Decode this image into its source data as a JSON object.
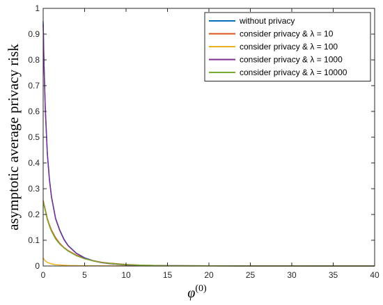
{
  "chart_data": {
    "type": "line",
    "title": "",
    "xlabel": "φ",
    "xlabel_superscript": "(0)",
    "ylabel": "asymptotic average privacy risk",
    "xlim": [
      0,
      40
    ],
    "ylim": [
      0,
      1
    ],
    "xticks": [
      0,
      5,
      10,
      15,
      20,
      25,
      30,
      35,
      40
    ],
    "yticks": [
      0,
      0.1,
      0.2,
      0.3,
      0.4,
      0.5,
      0.6,
      0.7,
      0.8,
      0.9,
      1
    ],
    "xtick_labels": [
      "0",
      "5",
      "10",
      "15",
      "20",
      "25",
      "30",
      "35",
      "40"
    ],
    "ytick_labels": [
      "0",
      "0.1",
      "0.2",
      "0.3",
      "0.4",
      "0.5",
      "0.6",
      "0.7",
      "0.8",
      "0.9",
      "1"
    ],
    "grid": false,
    "legend_position": "top-right",
    "series": [
      {
        "name": "without privacy",
        "color": "#0072BD",
        "x": [
          0,
          0.1,
          0.25,
          0.5,
          0.75,
          1,
          1.5,
          2,
          2.5,
          3,
          4,
          5,
          6,
          7,
          8,
          10,
          12,
          15,
          20,
          25,
          30,
          35,
          40
        ],
        "y": [
          0.95,
          0.79,
          0.62,
          0.44,
          0.34,
          0.27,
          0.185,
          0.14,
          0.105,
          0.08,
          0.05,
          0.032,
          0.021,
          0.014,
          0.009,
          0.004,
          0.002,
          0.001,
          0.0005,
          0.0003,
          0.0002,
          0.0001,
          0.0001
        ]
      },
      {
        "name": "consider privacy & λ = 10",
        "color": "#D95319",
        "x": [
          0,
          0.1,
          0.25,
          0.5,
          0.75,
          1,
          1.5,
          2,
          2.5,
          3,
          4,
          5,
          6,
          7,
          8,
          10,
          12,
          15,
          20,
          25,
          30,
          35,
          40
        ],
        "y": [
          0.255,
          0.24,
          0.22,
          0.185,
          0.16,
          0.14,
          0.11,
          0.088,
          0.072,
          0.06,
          0.042,
          0.03,
          0.021,
          0.015,
          0.011,
          0.006,
          0.003,
          0.001,
          0.0005,
          0.0003,
          0.0002,
          0.0001,
          0.0001
        ]
      },
      {
        "name": "consider privacy & λ = 100",
        "color": "#EDB120",
        "x": [
          0,
          0.1,
          0.25,
          0.5,
          1,
          1.5,
          2,
          3,
          4,
          5,
          8,
          10,
          15,
          20,
          25,
          30,
          35,
          40
        ],
        "y": [
          0.032,
          0.026,
          0.02,
          0.014,
          0.008,
          0.005,
          0.004,
          0.002,
          0.0015,
          0.001,
          0.0005,
          0.0003,
          0.0002,
          0.0001,
          0.0001,
          0.0001,
          0.0001,
          0.0001
        ]
      },
      {
        "name": "consider privacy & λ = 1000",
        "color": "#7E2F8E",
        "x": [
          0,
          0.1,
          0.25,
          0.5,
          0.75,
          1,
          1.5,
          2,
          2.5,
          3,
          4,
          5,
          6,
          7,
          8,
          10,
          12,
          15,
          20,
          25,
          30,
          35,
          40
        ],
        "y": [
          0.94,
          0.78,
          0.61,
          0.435,
          0.335,
          0.268,
          0.183,
          0.138,
          0.103,
          0.079,
          0.049,
          0.031,
          0.02,
          0.013,
          0.009,
          0.004,
          0.002,
          0.001,
          0.0005,
          0.0003,
          0.0002,
          0.0001,
          0.0001
        ]
      },
      {
        "name": "consider privacy & λ = 10000",
        "color": "#77AC30",
        "x": [
          0,
          0.1,
          0.25,
          0.5,
          0.75,
          1,
          1.5,
          2,
          2.5,
          3,
          4,
          5,
          6,
          7,
          8,
          10,
          12,
          15,
          20,
          25,
          30,
          35,
          40
        ],
        "y": [
          0.25,
          0.235,
          0.215,
          0.18,
          0.155,
          0.135,
          0.105,
          0.085,
          0.07,
          0.058,
          0.04,
          0.028,
          0.02,
          0.014,
          0.01,
          0.005,
          0.003,
          0.001,
          0.0005,
          0.0003,
          0.0002,
          0.0001,
          0.0001
        ]
      }
    ]
  }
}
